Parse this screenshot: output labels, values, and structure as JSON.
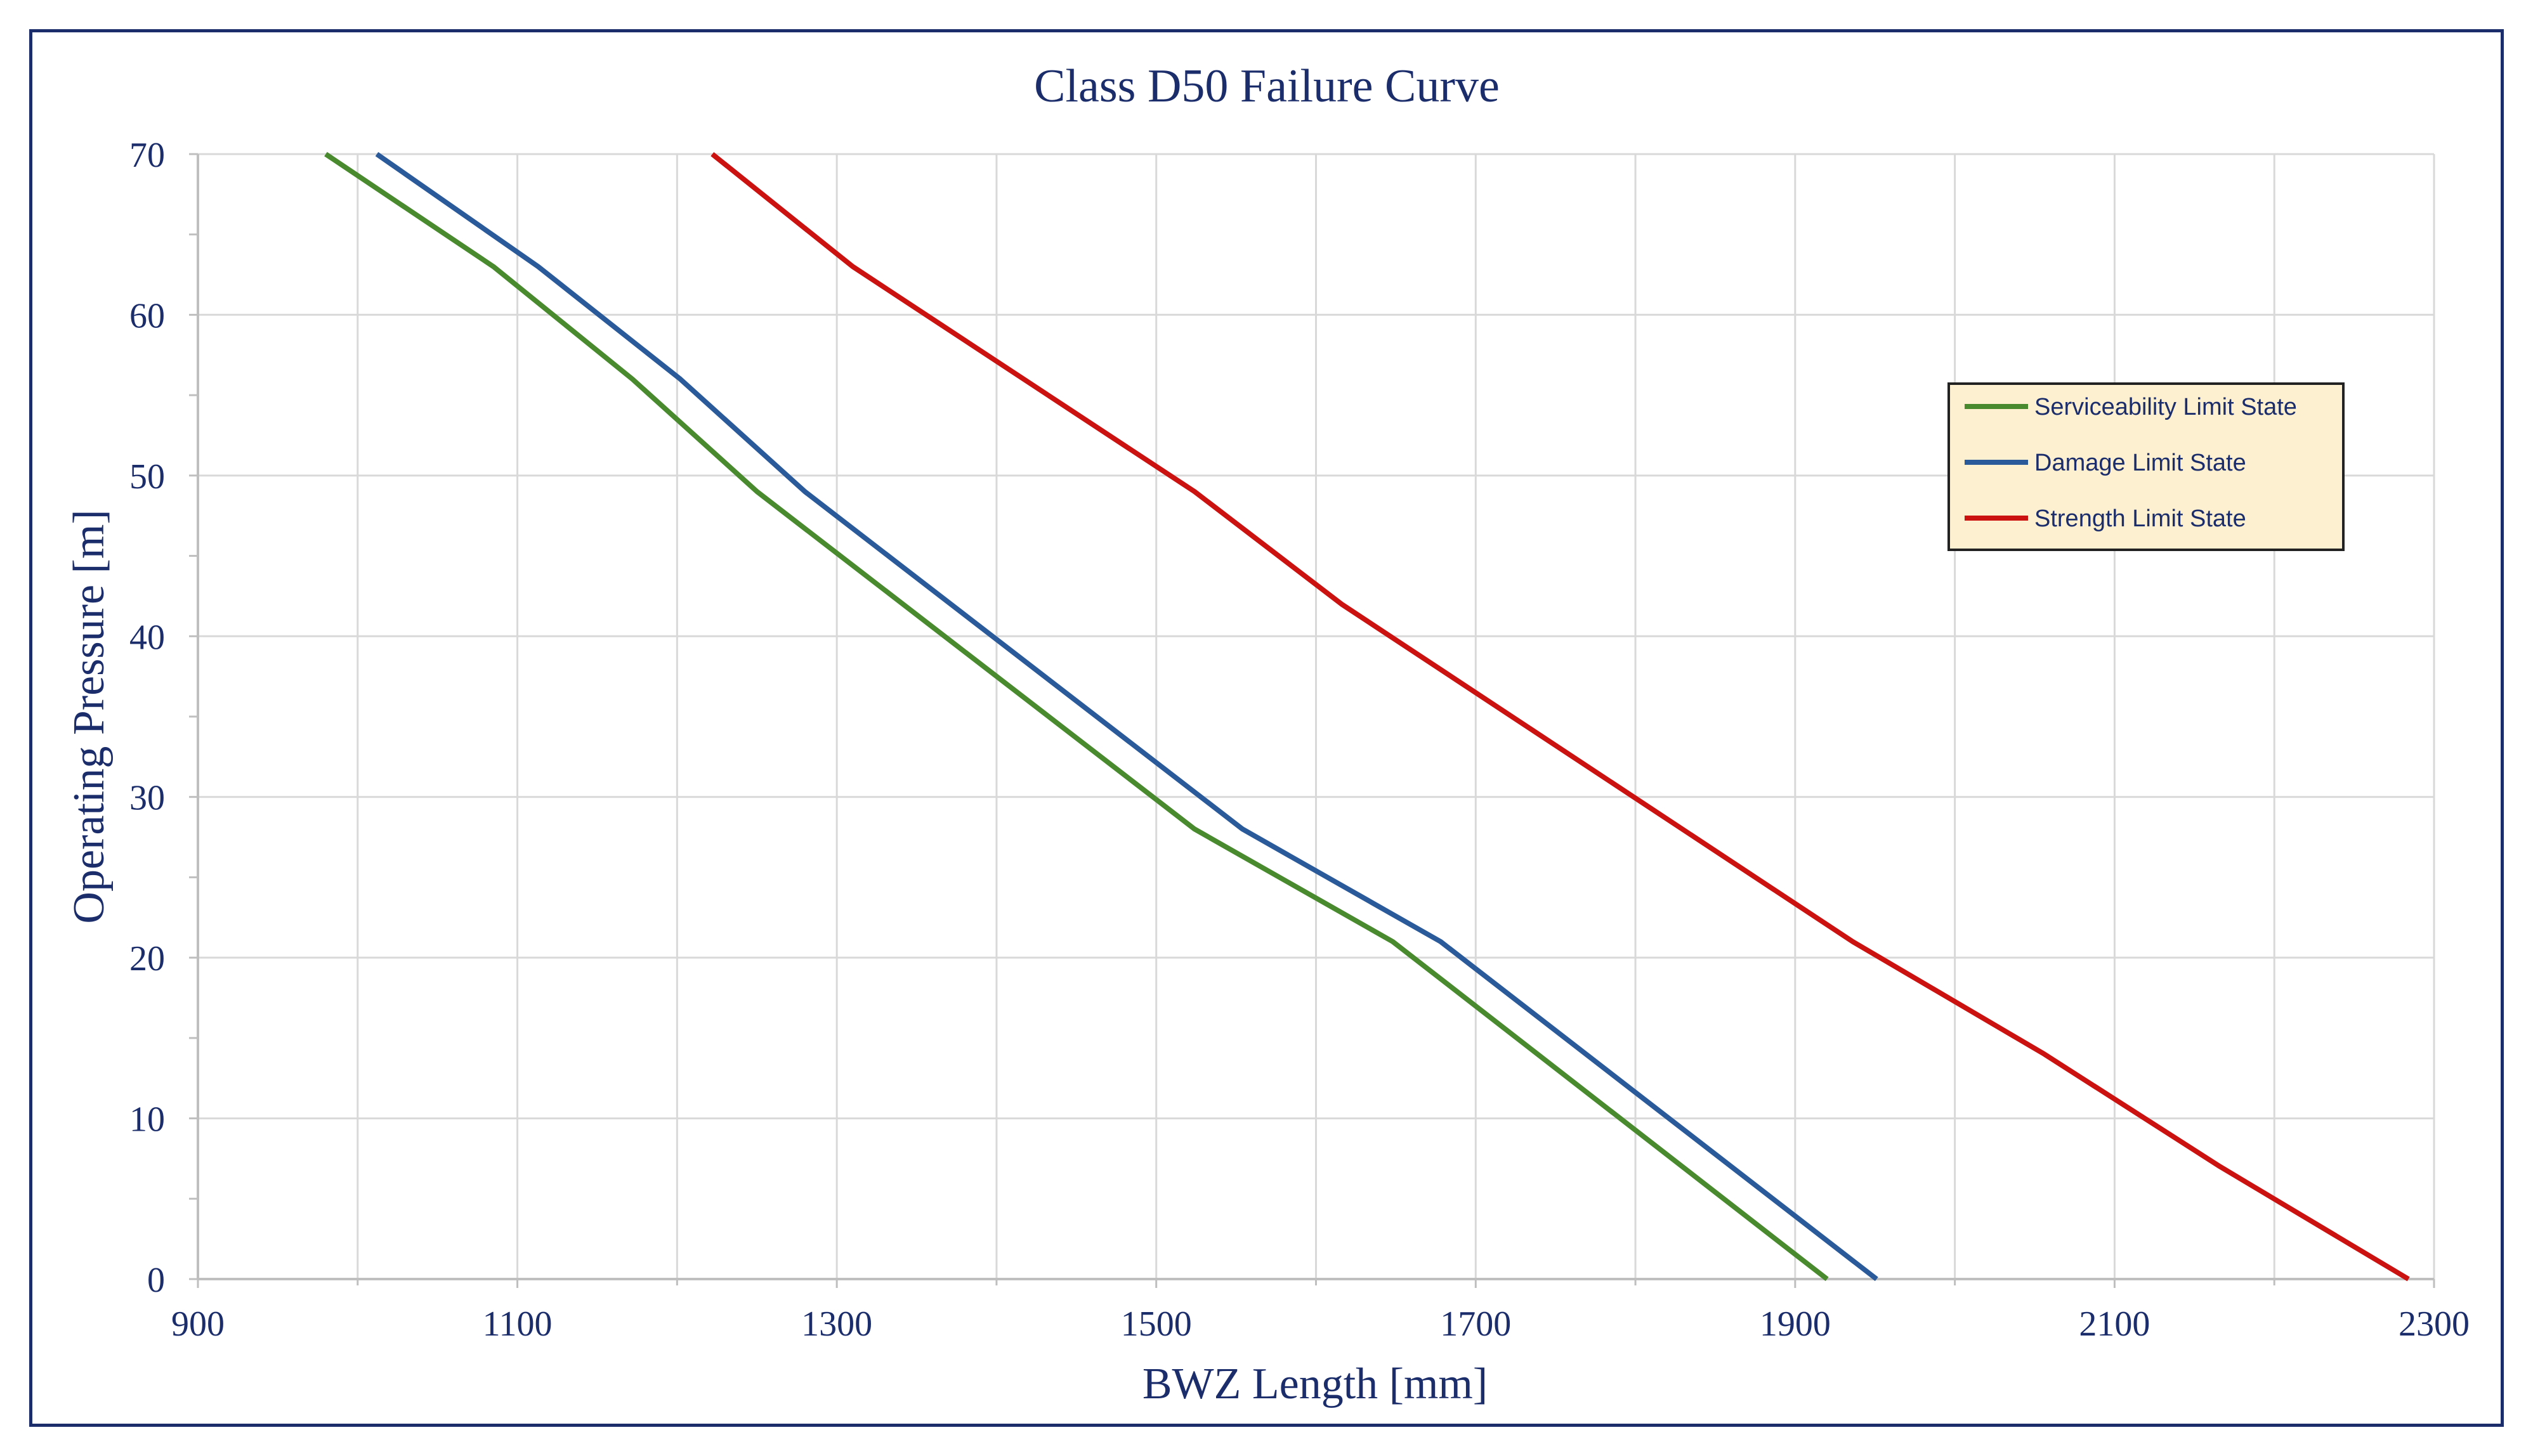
{
  "chart_data": {
    "type": "line",
    "title": "Class D50 Failure Curve",
    "xlabel": "BWZ Length [mm]",
    "ylabel": "Operating Pressure [m]",
    "xlim": [
      900,
      2300
    ],
    "ylim": [
      0,
      70
    ],
    "xticks": [
      900,
      1100,
      1300,
      1500,
      1700,
      1900,
      2100,
      2300
    ],
    "yticks": [
      0,
      10,
      20,
      30,
      40,
      50,
      60,
      70
    ],
    "grid": true,
    "legend_position": "right",
    "series": [
      {
        "name": "Serviceability Limit State",
        "color": "#4a8a2f",
        "points": [
          [
            1920,
            0
          ],
          [
            1648,
            21
          ],
          [
            1524,
            28
          ],
          [
            1250,
            49
          ],
          [
            1172,
            56
          ],
          [
            1085,
            63
          ],
          [
            980,
            70
          ]
        ]
      },
      {
        "name": "Damage Limit State",
        "color": "#2a5a9a",
        "points": [
          [
            1951,
            0
          ],
          [
            1678,
            21
          ],
          [
            1554,
            28
          ],
          [
            1280,
            49
          ],
          [
            1202,
            56
          ],
          [
            1113,
            63
          ],
          [
            1012,
            70
          ]
        ]
      },
      {
        "name": "Strength Limit State",
        "color": "#cc1111",
        "points": [
          [
            2284,
            0
          ],
          [
            2166,
            7
          ],
          [
            2056,
            14
          ],
          [
            1936,
            21
          ],
          [
            1616,
            42
          ],
          [
            1524,
            49
          ],
          [
            1310,
            63
          ],
          [
            1222,
            70
          ]
        ]
      }
    ]
  }
}
